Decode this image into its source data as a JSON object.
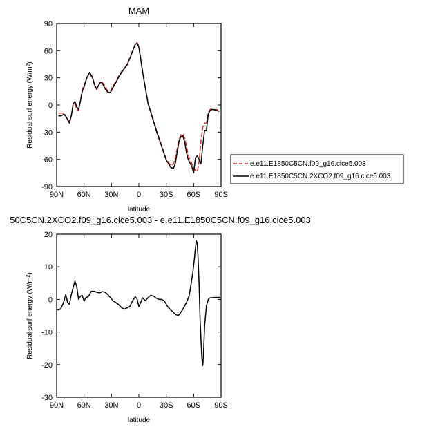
{
  "colors": {
    "control": "#d62728",
    "experiment": "#000000"
  },
  "chart_data": [
    {
      "type": "line",
      "title": "MAM",
      "xlabel": "latitude",
      "ylabel": "Residual surf energy (W/m",
      "ylabel_sup": "2",
      "ylabel_close": ")",
      "xlim": [
        90,
        -90
      ],
      "ylim": [
        -90,
        90
      ],
      "xticks": [
        90,
        60,
        30,
        0,
        -30,
        -60,
        -90
      ],
      "xtick_labels": [
        "90N",
        "60N",
        "30N",
        "0",
        "30S",
        "60S",
        "90S"
      ],
      "yticks": [
        -90,
        -60,
        -30,
        0,
        30,
        60,
        90
      ],
      "ytick_labels": [
        "-90",
        "-60",
        "-30",
        "0",
        "30",
        "60",
        "90"
      ],
      "legend": "right",
      "series": [
        {
          "name": "e.e11.E1850C5CN.f09_g16.cice5.003",
          "style": "dashed",
          "x": [
            88,
            85,
            82,
            79,
            76,
            74,
            72,
            70,
            68,
            66,
            64,
            62,
            60,
            57,
            54,
            51,
            48,
            46,
            44,
            42,
            40,
            37,
            34,
            31,
            28,
            25,
            22,
            19,
            16,
            13,
            10,
            7,
            4,
            2,
            0,
            -2,
            -4,
            -7,
            -10,
            -13,
            -16,
            -20,
            -25,
            -30,
            -35,
            -38,
            -40,
            -42,
            -44,
            -46,
            -48,
            -50,
            -52,
            -54,
            -56,
            -58,
            -60,
            -62,
            -64,
            -66,
            -68,
            -70,
            -72,
            -74,
            -76,
            -78,
            -80,
            -82,
            -85,
            -88
          ],
          "y": [
            -9,
            -9,
            -9,
            -14,
            -18,
            -12,
            0,
            2,
            -5,
            -6,
            5,
            17,
            22,
            30,
            35,
            30,
            20,
            17,
            22,
            26,
            25,
            21,
            15,
            15,
            22,
            26,
            32,
            37,
            40,
            45,
            52,
            60,
            67,
            69,
            65,
            52,
            38,
            20,
            3,
            -7,
            -17,
            -30,
            -45,
            -60,
            -67,
            -65,
            -58,
            -48,
            -38,
            -33,
            -32,
            -36,
            -45,
            -55,
            -60,
            -65,
            -70,
            -72,
            -74,
            -62,
            -40,
            -24,
            -20,
            -20,
            -8,
            -5,
            -4,
            -5,
            -5,
            -6
          ]
        },
        {
          "name": "e.e11.E1850C5CN.2XCO2.f09_g16.cice5.003",
          "style": "solid",
          "x": [
            88,
            85,
            82,
            79,
            76,
            74,
            72,
            70,
            68,
            66,
            64,
            62,
            60,
            57,
            54,
            51,
            48,
            46,
            44,
            42,
            40,
            37,
            34,
            31,
            28,
            25,
            22,
            19,
            16,
            13,
            10,
            7,
            4,
            2,
            0,
            -2,
            -4,
            -7,
            -10,
            -13,
            -16,
            -20,
            -25,
            -30,
            -35,
            -38,
            -40,
            -42,
            -44,
            -46,
            -48,
            -50,
            -52,
            -54,
            -56,
            -58,
            -60,
            -62,
            -64,
            -66,
            -68,
            -70,
            -72,
            -74,
            -76,
            -78,
            -80,
            -82,
            -85,
            -88
          ],
          "y": [
            -12,
            -12,
            -10,
            -14,
            -20,
            -12,
            1,
            4,
            -2,
            -5,
            4,
            15,
            20,
            30,
            36,
            31,
            21,
            18,
            22,
            25,
            24,
            18,
            14,
            14,
            20,
            25,
            31,
            36,
            40,
            44,
            51,
            59,
            67,
            68,
            64,
            51,
            37,
            19,
            2,
            -8,
            -18,
            -31,
            -46,
            -61,
            -69,
            -70,
            -64,
            -52,
            -40,
            -35,
            -34,
            -40,
            -52,
            -60,
            -64,
            -68,
            -75,
            -58,
            -56,
            -60,
            -65,
            -44,
            -28,
            -28,
            -10,
            -6,
            -5,
            -5,
            -6,
            -7
          ]
        }
      ]
    },
    {
      "type": "line",
      "title": "50C5CN.2XCO2.f09_g16.cice5.003 - e.e11.E1850C5CN.f09_g16.cice5.003",
      "xlabel": "latitude",
      "ylabel": "Residual surf energy (W/m",
      "ylabel_sup": "2",
      "ylabel_close": ")",
      "xlim": [
        90,
        -90
      ],
      "ylim": [
        -30,
        20
      ],
      "xticks": [
        90,
        60,
        30,
        0,
        -30,
        -60,
        -90
      ],
      "xtick_labels": [
        "90N",
        "60N",
        "30N",
        "0",
        "30S",
        "60S",
        "90S"
      ],
      "yticks": [
        -30,
        -20,
        -10,
        0,
        10,
        20
      ],
      "ytick_labels": [
        "-30",
        "-20",
        "-10",
        "0",
        "10",
        "20"
      ],
      "series": [
        {
          "style": "solid",
          "x": [
            90,
            88,
            86,
            84,
            82,
            80,
            78,
            76,
            74,
            72,
            70,
            68,
            66,
            64,
            62,
            60,
            58,
            55,
            52,
            49,
            46,
            43,
            40,
            37,
            34,
            31,
            28,
            25,
            22,
            19,
            16,
            13,
            10,
            7,
            4,
            2,
            0,
            -2,
            -4,
            -7,
            -10,
            -13,
            -16,
            -19,
            -22,
            -25,
            -28,
            -31,
            -34,
            -37,
            -40,
            -43,
            -46,
            -49,
            -52,
            -55,
            -57,
            -59,
            -61,
            -62,
            -63,
            -64,
            -65,
            -66,
            -67,
            -68,
            -69,
            -70,
            -71,
            -72,
            -74,
            -76,
            -78,
            -80,
            -83,
            -86,
            -89
          ],
          "y": [
            -3.2,
            -3.2,
            -3,
            -2,
            -0.5,
            1.5,
            -1,
            -1.5,
            1.5,
            3.5,
            5.6,
            4,
            0,
            1,
            1.2,
            -0.5,
            0.5,
            1,
            2.5,
            2.5,
            2.2,
            2,
            2.4,
            2.2,
            1.5,
            0.5,
            -0.5,
            -1,
            -1.6,
            -2.5,
            -3,
            -2.6,
            -2.2,
            -0.5,
            0.8,
            0.2,
            -2.2,
            -1,
            0.5,
            -0.4,
            0.5,
            1.3,
            1,
            0.4,
            0,
            0,
            -0.5,
            -2,
            -3,
            -3.7,
            -4.6,
            -5,
            -4,
            -2.6,
            -1,
            1,
            4.5,
            8,
            13,
            16,
            18,
            17,
            12,
            4,
            -6,
            -12,
            -18,
            -20.3,
            -15,
            -8,
            -2,
            0,
            0.5,
            0.5,
            0.6,
            0.6,
            0.6
          ]
        }
      ]
    }
  ]
}
